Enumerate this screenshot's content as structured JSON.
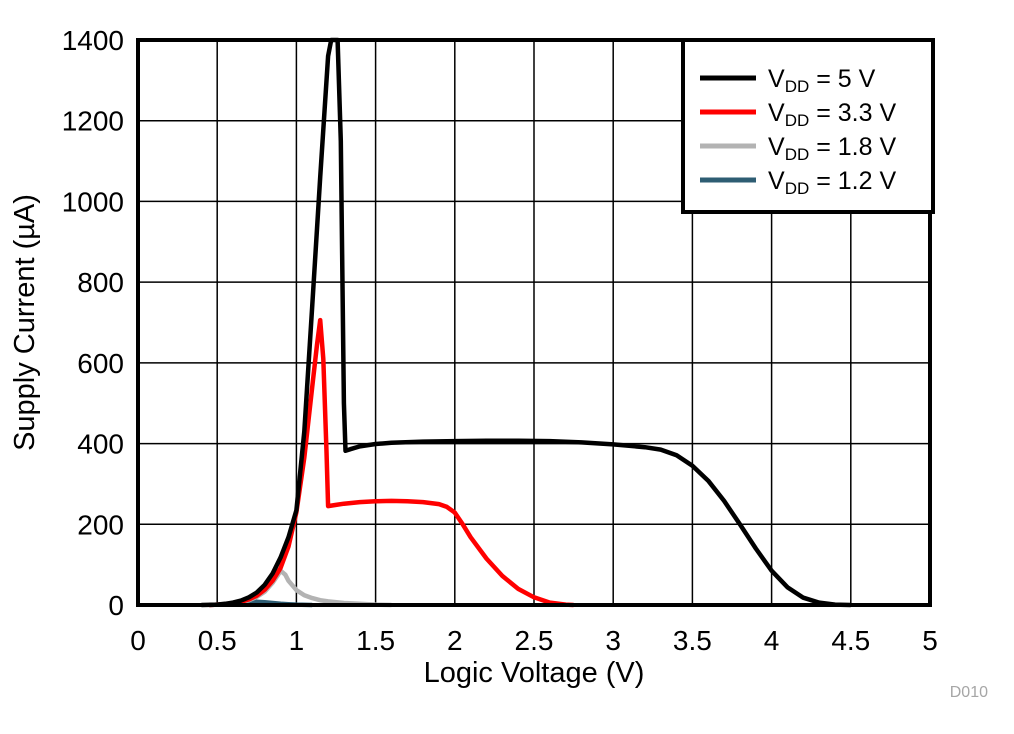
{
  "chart_data": {
    "type": "line",
    "xlabel": "Logic Voltage (V)",
    "ylabel": "Supply Current (µA)",
    "xlim": [
      0,
      5
    ],
    "ylim": [
      0,
      1400
    ],
    "grid": true,
    "legend_position": "top-right",
    "watermark": {
      "text": "D010",
      "color": "#A6A6A6"
    },
    "frame_color": "#000000",
    "grid_color": "#000000",
    "x_ticks": [
      {
        "v": 0,
        "label": "0"
      },
      {
        "v": 0.5,
        "label": "0.5"
      },
      {
        "v": 1,
        "label": "1"
      },
      {
        "v": 1.5,
        "label": "1.5"
      },
      {
        "v": 2,
        "label": "2"
      },
      {
        "v": 2.5,
        "label": "2.5"
      },
      {
        "v": 3,
        "label": "3"
      },
      {
        "v": 3.5,
        "label": "3.5"
      },
      {
        "v": 4,
        "label": "4"
      },
      {
        "v": 4.5,
        "label": "4.5"
      },
      {
        "v": 5,
        "label": "5"
      }
    ],
    "y_ticks": [
      {
        "v": 0,
        "label": "0"
      },
      {
        "v": 200,
        "label": "200"
      },
      {
        "v": 400,
        "label": "400"
      },
      {
        "v": 600,
        "label": "600"
      },
      {
        "v": 800,
        "label": "800"
      },
      {
        "v": 1000,
        "label": "1000"
      },
      {
        "v": 1200,
        "label": "1200"
      },
      {
        "v": 1400,
        "label": "1400"
      }
    ],
    "series": [
      {
        "name": "VDD = 5 V",
        "legend": {
          "pre": "V",
          "sub": "DD",
          "post": " = 5 V"
        },
        "color": "#000000",
        "points": [
          [
            0.4,
            0
          ],
          [
            0.5,
            1
          ],
          [
            0.55,
            3
          ],
          [
            0.6,
            6
          ],
          [
            0.65,
            11
          ],
          [
            0.7,
            19
          ],
          [
            0.75,
            31
          ],
          [
            0.8,
            50
          ],
          [
            0.85,
            78
          ],
          [
            0.9,
            118
          ],
          [
            0.95,
            168
          ],
          [
            1.0,
            235
          ],
          [
            1.05,
            430
          ],
          [
            1.1,
            740
          ],
          [
            1.15,
            1060
          ],
          [
            1.2,
            1360
          ],
          [
            1.22,
            1400
          ],
          [
            1.26,
            1400
          ],
          [
            1.28,
            1150
          ],
          [
            1.3,
            500
          ],
          [
            1.31,
            382
          ],
          [
            1.34,
            386
          ],
          [
            1.4,
            393
          ],
          [
            1.5,
            399
          ],
          [
            1.6,
            402
          ],
          [
            1.8,
            405
          ],
          [
            2.0,
            406
          ],
          [
            2.2,
            407
          ],
          [
            2.4,
            407
          ],
          [
            2.6,
            406
          ],
          [
            2.8,
            403
          ],
          [
            3.0,
            398
          ],
          [
            3.2,
            391
          ],
          [
            3.3,
            385
          ],
          [
            3.4,
            371
          ],
          [
            3.5,
            345
          ],
          [
            3.6,
            308
          ],
          [
            3.7,
            258
          ],
          [
            3.8,
            200
          ],
          [
            3.9,
            140
          ],
          [
            4.0,
            85
          ],
          [
            4.1,
            44
          ],
          [
            4.2,
            18
          ],
          [
            4.3,
            6
          ],
          [
            4.4,
            1
          ],
          [
            4.5,
            0
          ]
        ]
      },
      {
        "name": "VDD = 3.3 V",
        "legend": {
          "pre": "V",
          "sub": "DD",
          "post": " = 3.3 V"
        },
        "color": "#FF0000",
        "points": [
          [
            0.45,
            0
          ],
          [
            0.55,
            2
          ],
          [
            0.6,
            4
          ],
          [
            0.65,
            8
          ],
          [
            0.7,
            14
          ],
          [
            0.75,
            23
          ],
          [
            0.8,
            38
          ],
          [
            0.85,
            60
          ],
          [
            0.9,
            92
          ],
          [
            0.95,
            145
          ],
          [
            1.0,
            230
          ],
          [
            1.05,
            365
          ],
          [
            1.1,
            540
          ],
          [
            1.13,
            645
          ],
          [
            1.15,
            706
          ],
          [
            1.17,
            610
          ],
          [
            1.19,
            380
          ],
          [
            1.2,
            245
          ],
          [
            1.25,
            248
          ],
          [
            1.3,
            251
          ],
          [
            1.4,
            255
          ],
          [
            1.5,
            257
          ],
          [
            1.6,
            258
          ],
          [
            1.7,
            257
          ],
          [
            1.8,
            255
          ],
          [
            1.9,
            250
          ],
          [
            1.95,
            243
          ],
          [
            2.0,
            229
          ],
          [
            2.05,
            200
          ],
          [
            2.1,
            168
          ],
          [
            2.2,
            115
          ],
          [
            2.3,
            72
          ],
          [
            2.4,
            40
          ],
          [
            2.5,
            19
          ],
          [
            2.6,
            6
          ],
          [
            2.7,
            1
          ],
          [
            2.75,
            0
          ]
        ]
      },
      {
        "name": "VDD = 1.8 V",
        "legend": {
          "pre": "V",
          "sub": "DD",
          "post": " = 1.8 V"
        },
        "color": "#B3B3B3",
        "points": [
          [
            0.45,
            0
          ],
          [
            0.55,
            2
          ],
          [
            0.6,
            4
          ],
          [
            0.65,
            7
          ],
          [
            0.7,
            12
          ],
          [
            0.75,
            20
          ],
          [
            0.8,
            33
          ],
          [
            0.85,
            55
          ],
          [
            0.88,
            72
          ],
          [
            0.9,
            85
          ],
          [
            0.93,
            75
          ],
          [
            0.95,
            60
          ],
          [
            1.0,
            37
          ],
          [
            1.05,
            24
          ],
          [
            1.1,
            17
          ],
          [
            1.15,
            12
          ],
          [
            1.2,
            9
          ],
          [
            1.3,
            5
          ],
          [
            1.4,
            3
          ],
          [
            1.5,
            1
          ],
          [
            1.6,
            0
          ]
        ]
      },
      {
        "name": "VDD = 1.2 V",
        "legend": {
          "pre": "V",
          "sub": "DD",
          "post": " = 1.2 V"
        },
        "color": "#2E5D73",
        "points": [
          [
            0.45,
            0
          ],
          [
            0.5,
            1
          ],
          [
            0.55,
            2
          ],
          [
            0.6,
            4
          ],
          [
            0.65,
            6
          ],
          [
            0.7,
            7
          ],
          [
            0.75,
            8
          ],
          [
            0.8,
            7
          ],
          [
            0.85,
            5
          ],
          [
            0.9,
            3
          ],
          [
            0.95,
            2
          ],
          [
            1.0,
            1
          ],
          [
            1.1,
            0
          ]
        ]
      }
    ]
  }
}
